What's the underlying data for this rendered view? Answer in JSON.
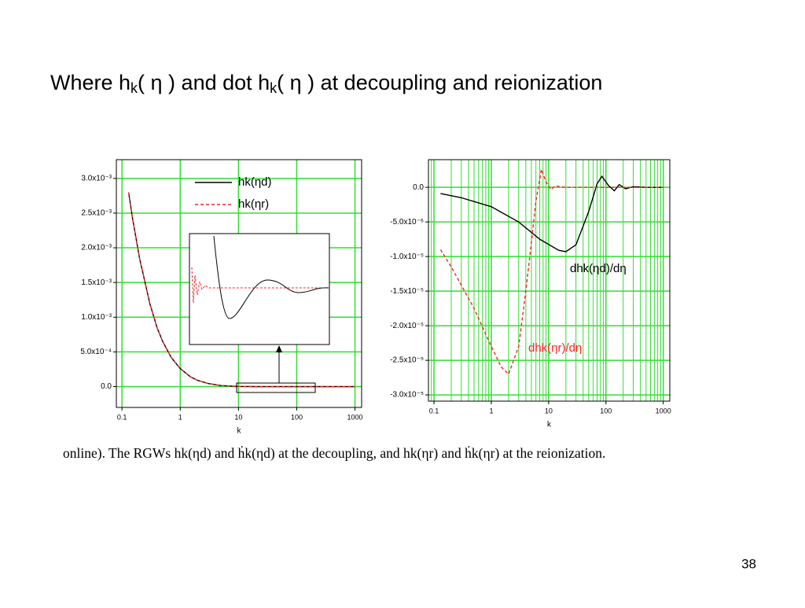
{
  "title": [
    "Where h",
    "k",
    "( η ) and  dot h",
    "k",
    "( η )  at decoupling and reionization"
  ],
  "caption": "online).   The RGWs hk(ηd) and ḣk(ηd) at the decoupling, and hk(ηr) and ḣk(ηr) at the reionization.",
  "page_number": "38",
  "chart_data": [
    {
      "type": "line",
      "x_label": "k",
      "log_x": true,
      "grid": true,
      "minor_grid": false,
      "grid_color": "#33dd33",
      "legend": "top",
      "xlim": [
        0.08,
        1300
      ],
      "xticks": [
        0.1,
        1,
        10,
        100,
        1000
      ],
      "ylim": [
        -0.0003,
        0.00327
      ],
      "yticks": [
        {
          "value": 0,
          "label": "0.0"
        },
        {
          "value": 0.0005,
          "label": "5.0x10⁻⁴"
        },
        {
          "value": 0.001,
          "label": "1.0x10⁻³"
        },
        {
          "value": 0.0015,
          "label": "1.5x10⁻³"
        },
        {
          "value": 0.002,
          "label": "2.0x10⁻³"
        },
        {
          "value": 0.0025,
          "label": "2.5x10⁻³"
        },
        {
          "value": 0.003,
          "label": "3.0x10⁻³"
        }
      ],
      "series": [
        {
          "name": "hk(ηd)",
          "color": "#000000",
          "dash": false,
          "x": [
            0.13,
            0.15,
            0.2,
            0.3,
            0.4,
            0.5,
            0.7,
            1,
            1.5,
            2,
            3,
            5,
            10,
            20,
            100,
            1000
          ],
          "values": [
            0.0028,
            0.00245,
            0.00185,
            0.0012,
            0.00085,
            0.00065,
            0.00042,
            0.00026,
            0.00014,
            9e-05,
            4.5e-05,
            1.5e-05,
            3e-06,
            0,
            0,
            0
          ]
        },
        {
          "name": "hk(ηr)",
          "color": "#ff2222",
          "dash": true,
          "x": [
            0.13,
            0.15,
            0.2,
            0.3,
            0.4,
            0.5,
            0.7,
            1,
            1.5,
            2,
            3,
            5,
            10,
            20,
            100,
            1000
          ],
          "values": [
            0.0028,
            0.00245,
            0.00185,
            0.0012,
            0.00085,
            0.00065,
            0.00042,
            0.00026,
            0.00014,
            9e-05,
            4.5e-05,
            1.5e-05,
            3e-06,
            0,
            0,
            0
          ]
        }
      ]
    },
    {
      "type": "line",
      "x_label": "k",
      "log_x": true,
      "grid": true,
      "minor_grid": true,
      "grid_color": "#33dd33",
      "legend": "inline",
      "xlim": [
        0.08,
        1300
      ],
      "xticks": [
        0.1,
        1,
        10,
        100,
        1000
      ],
      "ylim": [
        -3.09e-05,
        4e-06
      ],
      "yticks": [
        {
          "value": 0,
          "label": "0.0"
        },
        {
          "value": -5e-06,
          "label": "-5.0x10⁻⁶"
        },
        {
          "value": -1e-05,
          "label": "-1.0x10⁻⁵"
        },
        {
          "value": -1.5e-05,
          "label": "-1.5x10⁻⁵"
        },
        {
          "value": -2e-05,
          "label": "-2.0x10⁻⁵"
        },
        {
          "value": -2.5e-05,
          "label": "-2.5x10⁻⁵"
        },
        {
          "value": -3e-05,
          "label": "-3.0x10⁻⁵"
        }
      ],
      "series": [
        {
          "name": "dhk(ηd)/dη",
          "color": "#000000",
          "dash": false,
          "x": [
            0.13,
            0.3,
            1,
            3,
            7,
            15,
            20,
            30,
            50,
            70,
            85,
            110,
            140,
            170,
            220,
            300,
            500,
            1000
          ],
          "values": [
            -9e-07,
            -1.5e-06,
            -2.8e-06,
            -5e-06,
            -7.5e-06,
            -9.1e-06,
            -9.3e-06,
            -8.3e-06,
            -3.5e-06,
            5e-07,
            1.6e-06,
            3e-07,
            -5e-07,
            4e-07,
            -2e-07,
            1e-07,
            0,
            0
          ]
        },
        {
          "name": "dhk(ηr)/dη",
          "color": "#ff2222",
          "dash": true,
          "x": [
            0.13,
            0.2,
            0.5,
            1,
            1.5,
            2,
            3,
            4,
            5,
            6,
            7.5,
            9,
            11,
            13,
            20,
            1000
          ],
          "values": [
            -9e-06,
            -1.15e-05,
            -1.75e-05,
            -2.3e-05,
            -2.6e-05,
            -2.7e-05,
            -2.3e-05,
            -1.5e-05,
            -8e-06,
            -2e-06,
            2.6e-06,
            8e-07,
            -3e-07,
            2e-07,
            0,
            0
          ]
        }
      ]
    }
  ]
}
